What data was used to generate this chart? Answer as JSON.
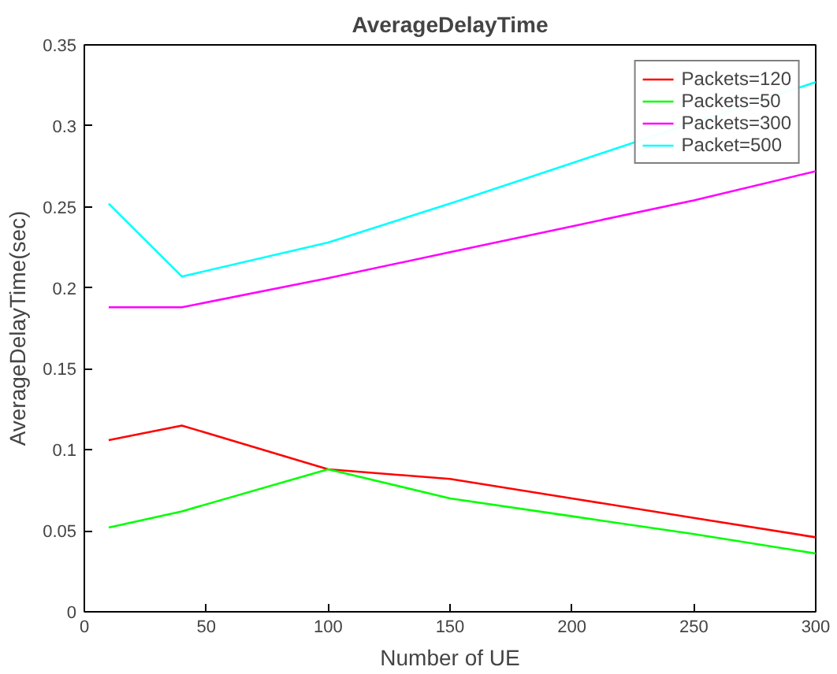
{
  "chart_data": {
    "type": "line",
    "title": "AverageDelayTime",
    "xlabel": "Number of UE",
    "ylabel": "AverageDelayTime(sec)",
    "x": [
      10,
      40,
      100,
      150,
      200,
      250,
      300
    ],
    "series": [
      {
        "name": "Packets=120",
        "color": "#ff0000",
        "values": [
          0.106,
          0.115,
          0.088,
          0.082,
          0.07,
          0.058,
          0.046
        ]
      },
      {
        "name": "Packets=50",
        "color": "#00ff00",
        "values": [
          0.052,
          0.062,
          0.088,
          0.07,
          0.059,
          0.048,
          0.036
        ]
      },
      {
        "name": "Packets=300",
        "color": "#ff00ff",
        "values": [
          0.188,
          0.188,
          0.206,
          0.222,
          0.238,
          0.254,
          0.272
        ]
      },
      {
        "name": "Packet=500",
        "color": "#00ffff",
        "x": [
          10,
          40,
          100,
          150,
          200,
          300
        ],
        "values": [
          0.252,
          0.207,
          0.228,
          0.252,
          0.277,
          0.327
        ]
      }
    ],
    "xlim": [
      0,
      300
    ],
    "xticks": [
      0,
      50,
      100,
      150,
      200,
      250,
      300
    ],
    "ylim": [
      0,
      0.35
    ],
    "yticks": [
      0,
      0.05,
      0.1,
      0.15,
      0.2,
      0.25,
      0.3,
      0.35
    ],
    "grid": false,
    "legend": "top right",
    "marker": "none",
    "line_style": "solid"
  }
}
